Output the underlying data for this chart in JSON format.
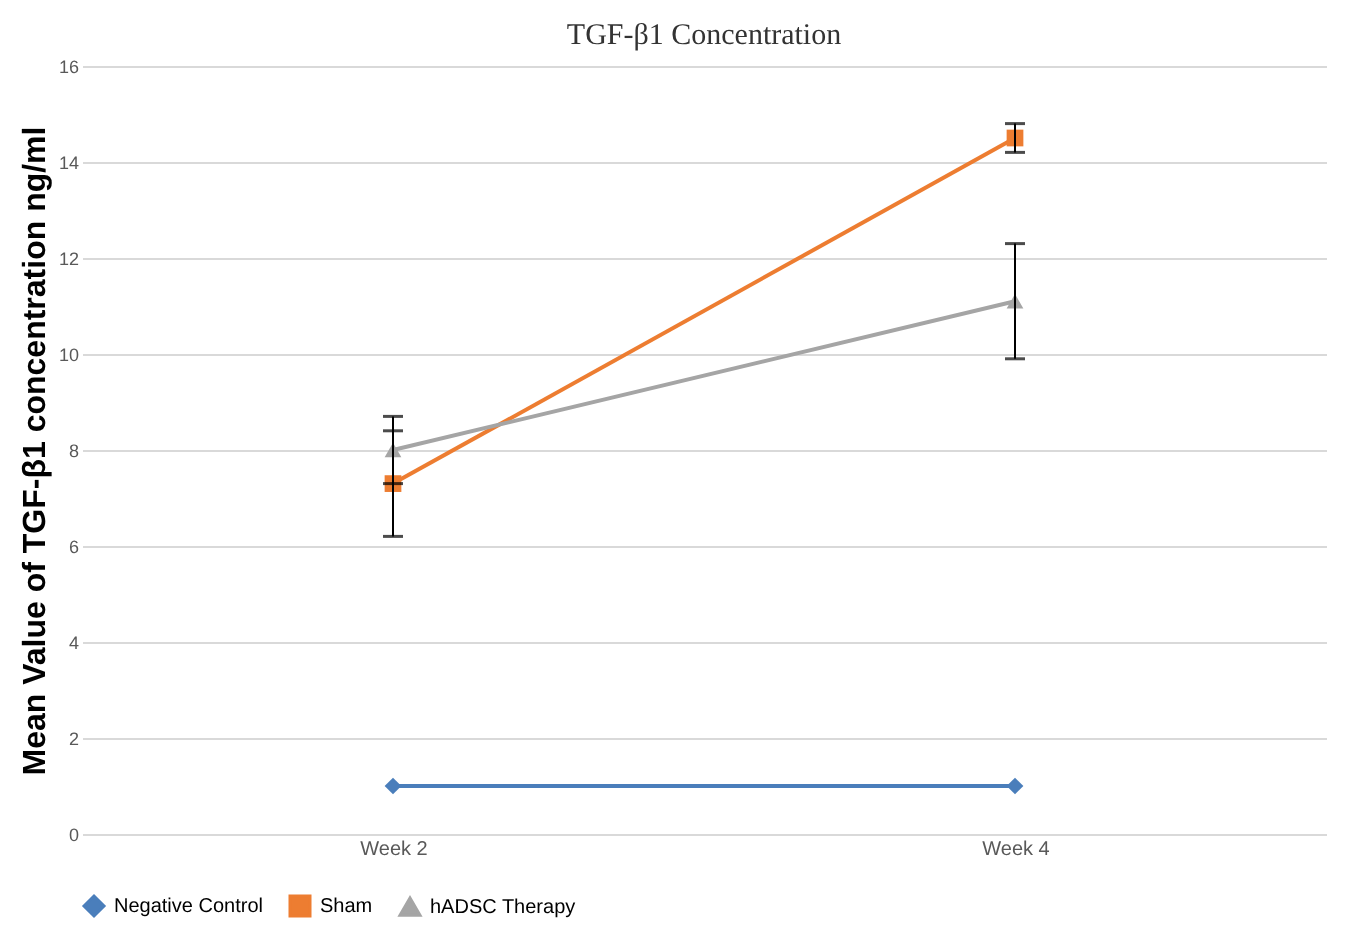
{
  "chart_data": {
    "type": "line",
    "title": "TGF-β1 Concentration",
    "ylabel": "Mean Value of TGF-β1 concentration ng/ml",
    "categories": [
      "Week 2",
      "Week 4"
    ],
    "series": [
      {
        "name": "Negative Control",
        "color": "#4a7ebb",
        "marker": "diamond",
        "values": [
          1.0,
          1.0
        ]
      },
      {
        "name": "Sham",
        "color": "#ed7d31",
        "marker": "square",
        "values": [
          7.3,
          14.5
        ],
        "errors": [
          1.1,
          0.3
        ]
      },
      {
        "name": "hADSC Therapy",
        "color": "#a5a5a5",
        "marker": "triangle",
        "values": [
          8.0,
          11.1
        ],
        "errors": [
          0.7,
          1.2
        ]
      }
    ],
    "ylim": [
      0,
      16
    ],
    "yticks": [
      0,
      2,
      4,
      6,
      8,
      10,
      12,
      14,
      16
    ],
    "grid": "y",
    "legend": "bottom"
  }
}
